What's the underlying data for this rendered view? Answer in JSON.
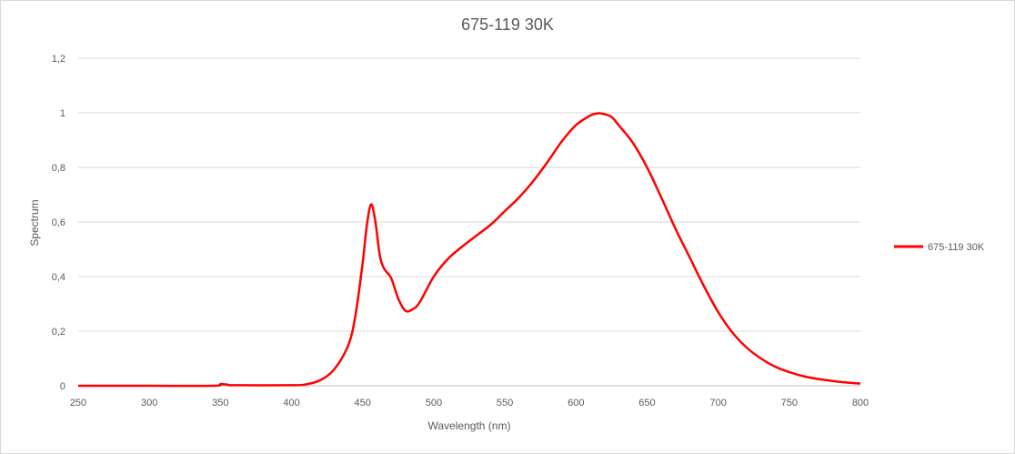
{
  "colors": {
    "series": "#ff0000",
    "grid": "#d9d9d9",
    "text": "#595959"
  },
  "chart_data": {
    "type": "line",
    "title": "675-119 30K",
    "xlabel": "Wavelength (nm)",
    "ylabel": "Spectrum",
    "xlim": [
      250,
      800
    ],
    "ylim": [
      0,
      1.2
    ],
    "grid": "horizontal",
    "legend_position": "right",
    "x_ticks": [
      "250",
      "300",
      "350",
      "400",
      "450",
      "500",
      "550",
      "600",
      "650",
      "700",
      "750",
      "800"
    ],
    "y_ticks": [
      "0",
      "0,2",
      "0,4",
      "0,6",
      "0,8",
      "1",
      "1,2"
    ],
    "series": [
      {
        "name": "675-119 30K",
        "x": [
          250,
          300,
          345,
          350,
          355,
          360,
          400,
          410,
          420,
          430,
          440,
          445,
          450,
          453,
          456,
          459,
          462,
          465,
          470,
          475,
          480,
          485,
          490,
          500,
          510,
          520,
          530,
          540,
          550,
          560,
          570,
          580,
          590,
          600,
          610,
          615,
          620,
          625,
          630,
          640,
          650,
          660,
          670,
          680,
          690,
          700,
          710,
          720,
          730,
          740,
          750,
          760,
          770,
          780,
          790,
          800
        ],
        "values": [
          0,
          0,
          0,
          0.006,
          0.004,
          0.002,
          0.002,
          0.005,
          0.02,
          0.06,
          0.15,
          0.26,
          0.45,
          0.59,
          0.665,
          0.6,
          0.48,
          0.43,
          0.395,
          0.32,
          0.275,
          0.28,
          0.305,
          0.4,
          0.465,
          0.51,
          0.55,
          0.59,
          0.64,
          0.69,
          0.75,
          0.82,
          0.895,
          0.955,
          0.99,
          0.998,
          0.995,
          0.985,
          0.955,
          0.89,
          0.8,
          0.69,
          0.575,
          0.47,
          0.365,
          0.27,
          0.195,
          0.14,
          0.1,
          0.07,
          0.05,
          0.035,
          0.025,
          0.018,
          0.012,
          0.008
        ]
      }
    ]
  }
}
